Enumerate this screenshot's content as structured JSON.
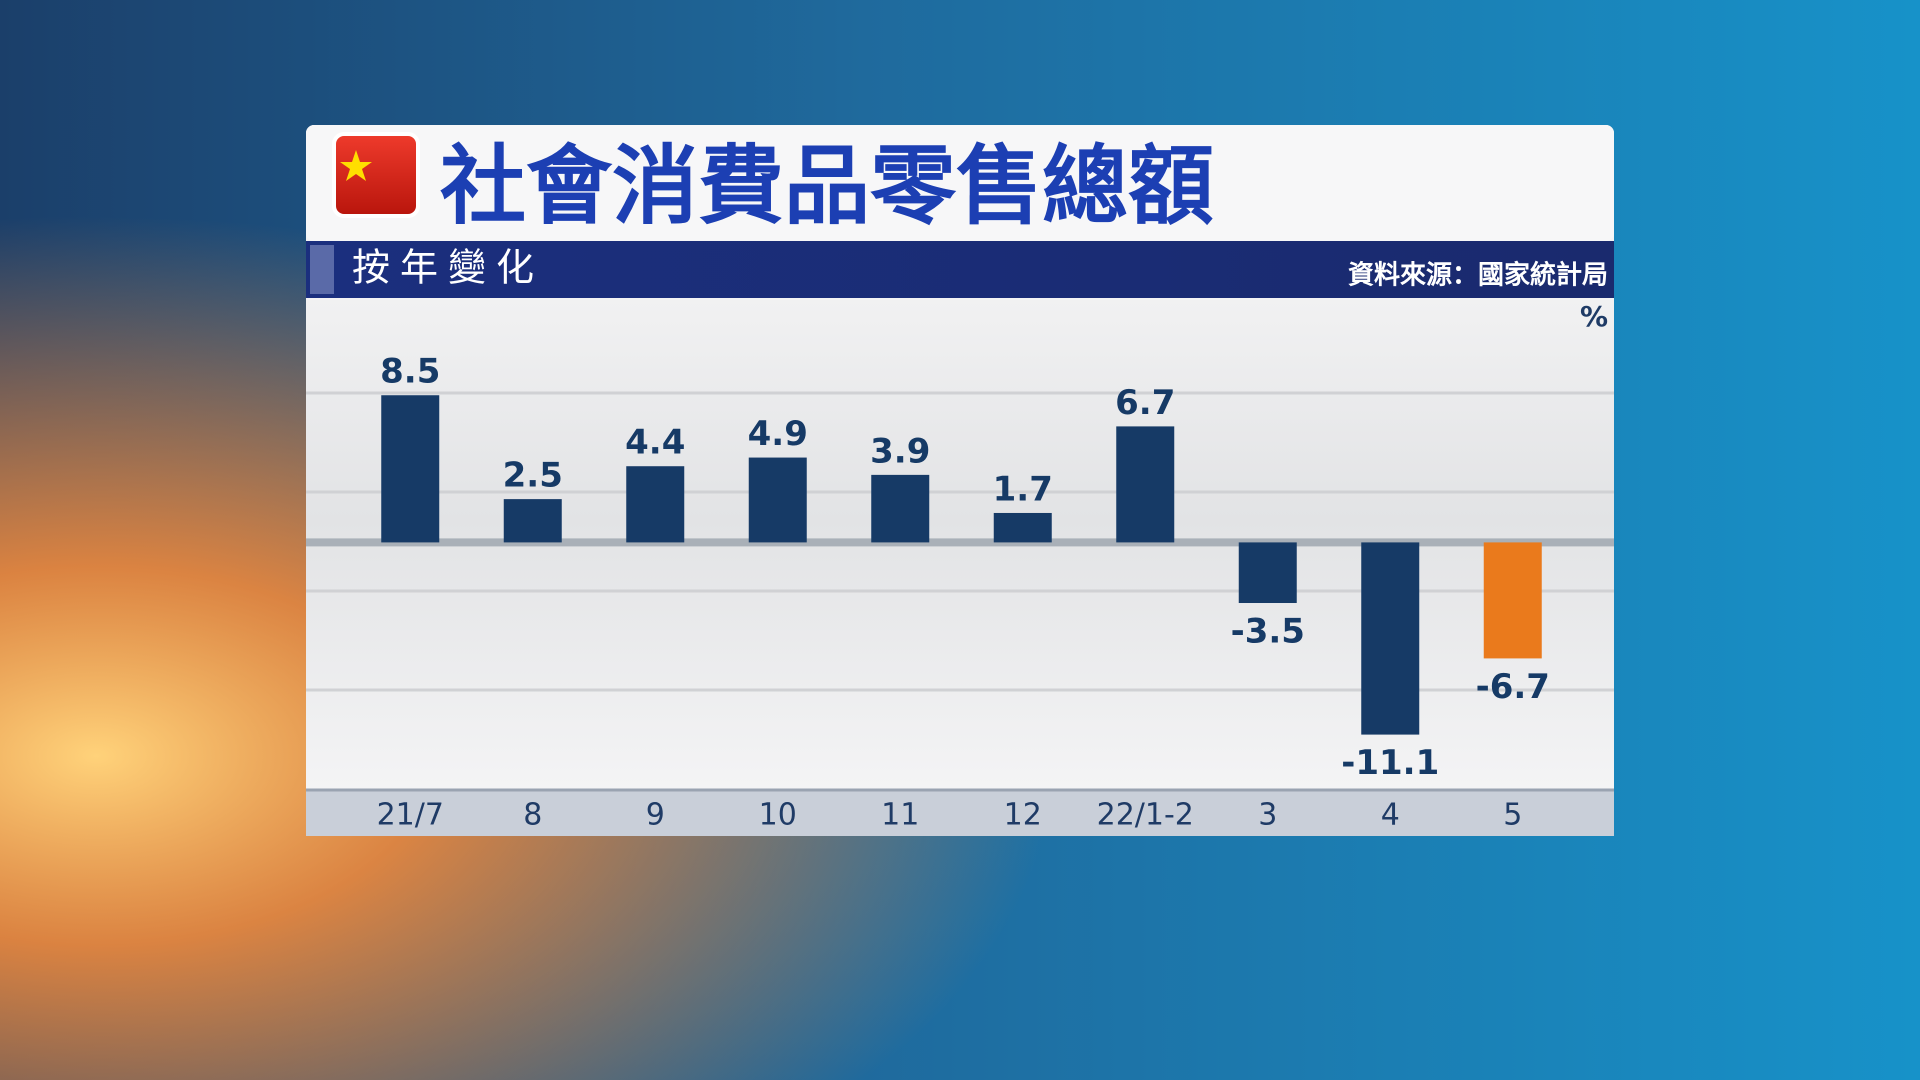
{
  "chart_data": {
    "type": "bar",
    "title": "社會消費品零售總額",
    "subtitle": "按年變化",
    "source": "資料來源：國家統計局",
    "unit": "%",
    "categories": [
      "21/7",
      "8",
      "9",
      "10",
      "11",
      "12",
      "22/1-2",
      "3",
      "4",
      "5"
    ],
    "values": [
      8.5,
      2.5,
      4.4,
      4.9,
      3.9,
      1.7,
      6.7,
      -3.5,
      -11.1,
      -6.7
    ],
    "colors": [
      "#163a66",
      "#163a66",
      "#163a66",
      "#163a66",
      "#163a66",
      "#163a66",
      "#163a66",
      "#163a66",
      "#163a66",
      "#ea7a1c"
    ],
    "ylim": [
      -14.3,
      14
    ]
  }
}
